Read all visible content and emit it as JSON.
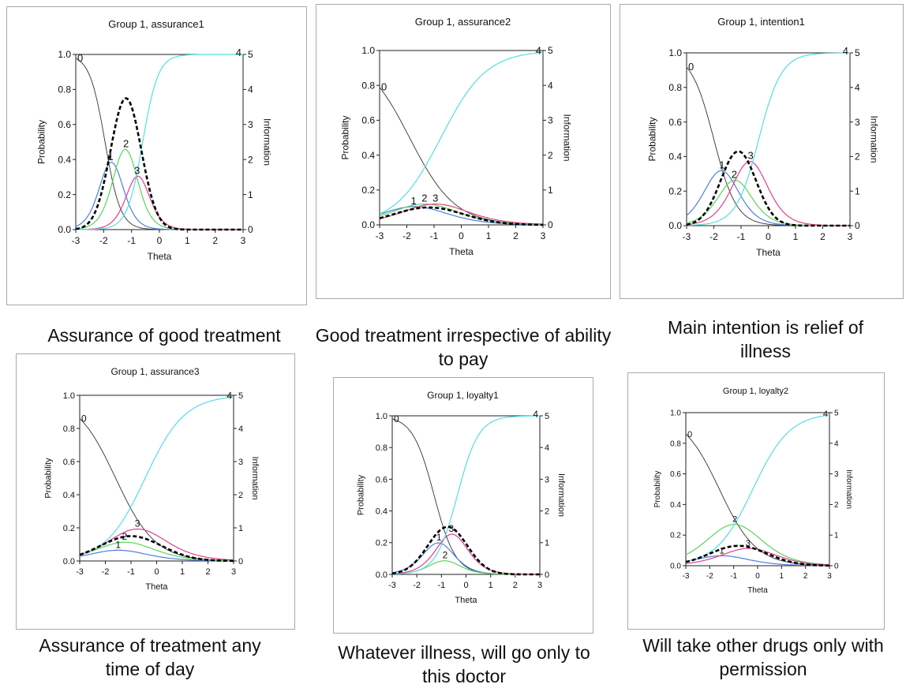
{
  "chart_data": [
    {
      "type": "line",
      "title": "Group 1, assurance1",
      "caption": "Assurance of good treatment",
      "xlabel": "Theta",
      "ylabel": "Probability",
      "y2label": "Information",
      "xlim": [
        -3,
        3
      ],
      "ylim": [
        0,
        1
      ],
      "y2lim": [
        0,
        5
      ],
      "xticks": [
        "-3",
        "-2",
        "-1",
        "0",
        "1",
        "2",
        "3"
      ],
      "yticks": [
        "0.0",
        "0.2",
        "0.4",
        "0.6",
        "0.8",
        "1.0"
      ],
      "y2ticks": [
        "0",
        "1",
        "2",
        "3",
        "4",
        "5"
      ],
      "a": 3.6,
      "b": [
        -1.95,
        -1.5,
        -0.95,
        -0.6
      ],
      "info": {
        "peak": 3.75,
        "mu": -1.2,
        "sd": 0.55
      },
      "series": [
        {
          "label": "0",
          "color": "#333333"
        },
        {
          "label": "1",
          "color": "#4f7fdd"
        },
        {
          "label": "2",
          "color": "#5cd35c"
        },
        {
          "label": "3",
          "color": "#e0408a"
        },
        {
          "label": "4",
          "color": "#55dde5"
        }
      ]
    },
    {
      "type": "line",
      "title": "Group 1, assurance2",
      "caption": "Good treatment irrespective of ability to pay",
      "xlabel": "Theta",
      "ylabel": "Probability",
      "y2label": "Information",
      "xlim": [
        -3,
        3
      ],
      "ylim": [
        0,
        1
      ],
      "y2lim": [
        0,
        5
      ],
      "xticks": [
        "-3",
        "-2",
        "-1",
        "0",
        "1",
        "2",
        "3"
      ],
      "yticks": [
        "0.0",
        "0.2",
        "0.4",
        "0.6",
        "0.8",
        "1.0"
      ],
      "y2ticks": [
        "0",
        "1",
        "2",
        "3",
        "4",
        "5"
      ],
      "a": 1.2,
      "b": [
        -1.9,
        -1.55,
        -1.15,
        -0.75
      ],
      "info": {
        "peak": 0.5,
        "mu": -1.2,
        "sd": 1.3
      },
      "series": [
        {
          "label": "0",
          "color": "#333333"
        },
        {
          "label": "1",
          "color": "#4f7fdd"
        },
        {
          "label": "2",
          "color": "#5cd35c"
        },
        {
          "label": "3",
          "color": "#e0408a"
        },
        {
          "label": "4",
          "color": "#55dde5"
        }
      ]
    },
    {
      "type": "line",
      "title": "Group 1, intention1",
      "caption": "Main intention is relief of illness",
      "xlabel": "Theta",
      "ylabel": "Probability",
      "y2label": "Information",
      "xlim": [
        -3,
        3
      ],
      "ylim": [
        0,
        1
      ],
      "y2lim": [
        0,
        5
      ],
      "xticks": [
        "-3",
        "-2",
        "-1",
        "0",
        "1",
        "2",
        "3"
      ],
      "yticks": [
        "0.0",
        "0.2",
        "0.4",
        "0.6",
        "0.8",
        "1.0"
      ],
      "y2ticks": [
        "0",
        "1",
        "2",
        "3",
        "4",
        "5"
      ],
      "a": 2.4,
      "b": [
        -2.0,
        -1.45,
        -1.0,
        -0.35
      ],
      "info": {
        "peak": 2.15,
        "mu": -1.1,
        "sd": 0.65
      },
      "series": [
        {
          "label": "0",
          "color": "#333333"
        },
        {
          "label": "1",
          "color": "#4f7fdd"
        },
        {
          "label": "2",
          "color": "#5cd35c"
        },
        {
          "label": "3",
          "color": "#e0408a"
        },
        {
          "label": "4",
          "color": "#55dde5"
        }
      ]
    },
    {
      "type": "line",
      "title": "Group 1, assurance3",
      "caption": "Assurance of treatment any time of day",
      "xlabel": "Theta",
      "ylabel": "Probability",
      "y2label": "Information",
      "xlim": [
        -3,
        3
      ],
      "ylim": [
        0,
        1
      ],
      "y2lim": [
        0,
        5
      ],
      "xticks": [
        "-3",
        "-2",
        "-1",
        "0",
        "1",
        "2",
        "3"
      ],
      "yticks": [
        "0.0",
        "0.2",
        "0.4",
        "0.6",
        "0.8",
        "1.0"
      ],
      "y2ticks": [
        "0",
        "1",
        "2",
        "3",
        "4",
        "5"
      ],
      "a": 1.3,
      "b": [
        -1.6,
        -1.4,
        -1.05,
        -0.45
      ],
      "info": {
        "peak": 0.75,
        "mu": -1.0,
        "sd": 1.2
      },
      "series": [
        {
          "label": "0",
          "color": "#333333"
        },
        {
          "label": "1",
          "color": "#4f7fdd"
        },
        {
          "label": "2",
          "color": "#5cd35c"
        },
        {
          "label": "3",
          "color": "#e0408a"
        },
        {
          "label": "4",
          "color": "#55dde5"
        }
      ]
    },
    {
      "type": "line",
      "title": "Group 1, loyalty1",
      "caption": "Whatever illness, will go only to this doctor",
      "xlabel": "Theta",
      "ylabel": "Probability",
      "y2label": "Information",
      "xlim": [
        -3,
        3
      ],
      "ylim": [
        0,
        1
      ],
      "y2lim": [
        0,
        5
      ],
      "xticks": [
        "-3",
        "-2",
        "-1",
        "0",
        "1",
        "2",
        "3"
      ],
      "yticks": [
        "0.0",
        "0.2",
        "0.4",
        "0.6",
        "0.8",
        "1.0"
      ],
      "y2ticks": [
        "0",
        "1",
        "2",
        "3",
        "4",
        "5"
      ],
      "a": 2.3,
      "b": [
        -1.3,
        -0.95,
        -0.8,
        -0.35
      ],
      "info": {
        "peak": 1.5,
        "mu": -0.75,
        "sd": 0.8
      },
      "series": [
        {
          "label": "0",
          "color": "#333333"
        },
        {
          "label": "1",
          "color": "#4f7fdd"
        },
        {
          "label": "2",
          "color": "#5cd35c"
        },
        {
          "label": "3",
          "color": "#e0408a"
        },
        {
          "label": "4",
          "color": "#55dde5"
        }
      ]
    },
    {
      "type": "line",
      "title": "Group 1, loyalty2",
      "caption": "Will take other drugs only with permission",
      "xlabel": "Theta",
      "ylabel": "Probability",
      "y2label": "Information",
      "xlim": [
        -3,
        3
      ],
      "ylim": [
        0,
        1
      ],
      "y2lim": [
        0,
        5
      ],
      "xticks": [
        "-3",
        "-2",
        "-1",
        "0",
        "1",
        "2",
        "3"
      ],
      "yticks": [
        "0.0",
        "0.2",
        "0.4",
        "0.6",
        "0.8",
        "1.0"
      ],
      "y2ticks": [
        "0",
        "1",
        "2",
        "3",
        "4",
        "5"
      ],
      "a": 1.3,
      "b": [
        -1.6,
        -1.4,
        -0.55,
        -0.2
      ],
      "info": {
        "peak": 0.65,
        "mu": -0.8,
        "sd": 1.2
      },
      "series": [
        {
          "label": "0",
          "color": "#333333"
        },
        {
          "label": "1",
          "color": "#4f7fdd"
        },
        {
          "label": "2",
          "color": "#5cd35c"
        },
        {
          "label": "3",
          "color": "#e0408a"
        },
        {
          "label": "4",
          "color": "#55dde5"
        }
      ]
    }
  ]
}
